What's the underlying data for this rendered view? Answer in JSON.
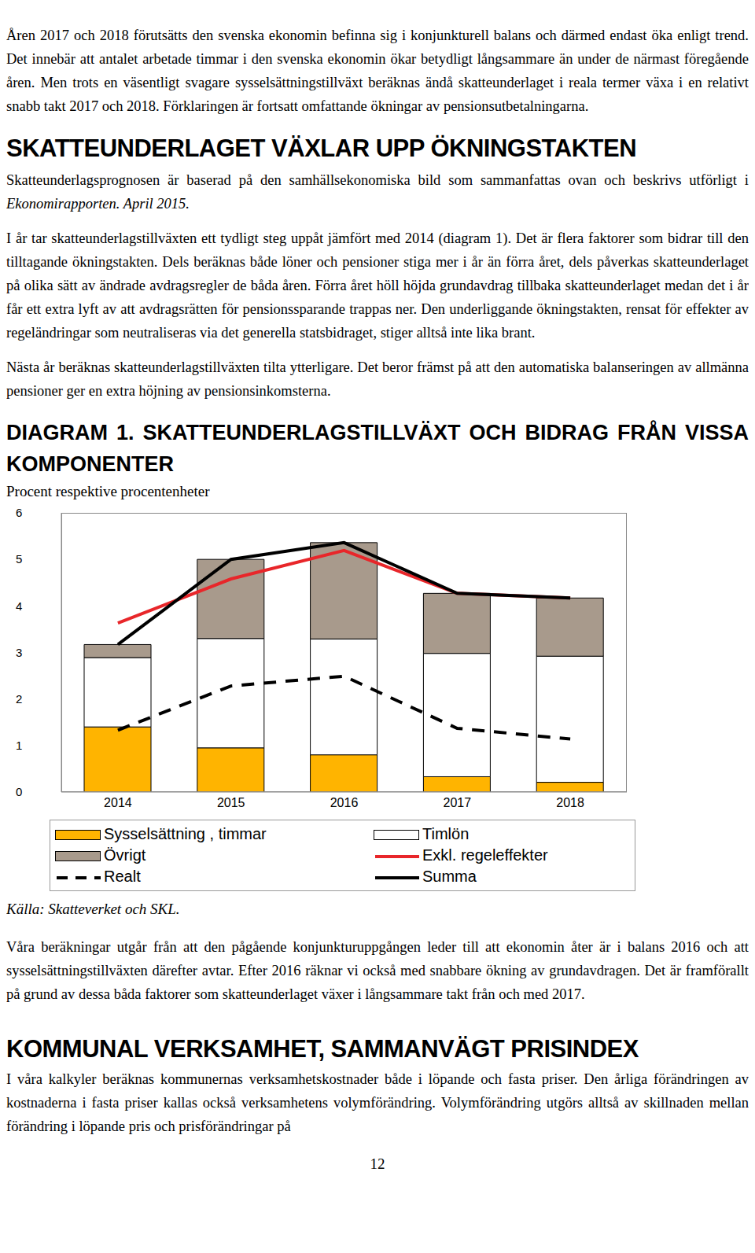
{
  "document": {
    "intro": [
      [
        {
          "text": "Åren 2017 och 2018 förutsätts den svenska ekonomin befinna sig i konjunkturell balans och därmed endast öka enligt trend. Det innebär att antalet arbetade timmar i den svenska ekonomin ökar betydligt långsammare än under de närmast föregående åren. Men trots en väsentligt svagare sysselsättningstillväxt beräknas ändå skatteunderlaget i reala termer växa i en relativt snabb takt 2017 och 2018. Förklaringen är fortsatt omfattande ökningar av pensionsutbetalningarna.",
          "italic": false
        }
      ]
    ],
    "heading_1": "SKATTEUNDERLAGET VÄXLAR UPP ÖKNINGSTAKTEN",
    "section_1": [
      [
        {
          "text": "Skatteunderlagsprognosen är baserad på den samhällsekonomiska bild som sammanfattas ovan och beskrivs utförligt i ",
          "italic": false
        },
        {
          "text": "Ekonomirapporten. April 2015.",
          "italic": true
        }
      ],
      [
        {
          "text": "I år tar skatteunderlagstillväxten ett tydligt steg uppåt jämfört med 2014 (diagram 1). Det är flera faktorer som bidrar till den tilltagande ökningstakten. Dels beräknas både löner och pensioner stiga mer i år än förra året, dels påverkas skatteunderlaget på olika sätt av ändrade avdragsregler de båda åren. Förra året höll höjda grundavdrag tillbaka skatteunderlaget medan det i år får ett extra lyft av att avdragsrätten för pensionssparande trappas ner. Den underliggande ökningstakten, rensat för effekter av regeländringar som neutraliseras via det generella statsbidraget, stiger alltså inte lika brant.",
          "italic": false
        }
      ],
      [
        {
          "text": "Nästa år beräknas skatteunderlagstillväxten tilta ytterligare. Det beror främst på att den automatiska balanseringen av allmänna pensioner ger en extra höjning av pensionsinkomsterna.",
          "italic": false
        }
      ]
    ],
    "source": "Källa: Skatteverket och SKL.",
    "section_2": [
      [
        {
          "text": "Våra beräkningar utgår från att den pågående konjunkturuppgången leder till att ekonomin åter är i balans 2016 och att sysselsättningstillväxten därefter avtar. Efter 2016 räknar vi också med snabbare ökning av grundavdragen. Det är framförallt på grund av dessa båda faktorer som skatteunderlaget växer i långsammare takt från och med 2017.",
          "italic": false
        }
      ]
    ],
    "heading_2": "KOMMUNAL VERKSAMHET, SAMMANVÄGT PRISINDEX",
    "section_3": [
      [
        {
          "text": "I våra kalkyler beräknas kommunernas verksamhetskostnader både i löpande och fasta priser. Den årliga förändringen av kostnaderna i fasta priser kallas också verksamhetens volymförändring. Volymförändring utgörs alltså av skillnaden mellan förändring i löpande pris och prisförändringar på",
          "italic": false
        }
      ]
    ],
    "page_number": "12"
  },
  "chart_data": {
    "type": "bar",
    "title": "DIAGRAM 1. SKATTEUNDERLAGSTILLVÄXT OCH BIDRAG FRÅN VISSA KOMPONENTER",
    "subtitle": "Procent respektive procentenheter",
    "categories": [
      "2014",
      "2015",
      "2016",
      "2017",
      "2018"
    ],
    "stacked": true,
    "ylim": [
      0,
      6
    ],
    "yticks": [
      0,
      1,
      2,
      3,
      4,
      5,
      6
    ],
    "grid": false,
    "series": [
      {
        "name": "Sysselsättning , timmar",
        "type": "bar",
        "color": "#ffb400",
        "values": [
          1.4,
          0.95,
          0.8,
          0.33,
          0.21
        ]
      },
      {
        "name": "Timlön",
        "type": "bar",
        "color": "#ffffff",
        "values": [
          1.49,
          2.35,
          2.49,
          2.65,
          2.71
        ]
      },
      {
        "name": "Övrigt",
        "type": "bar",
        "color": "#a89a8c",
        "values": [
          0.28,
          1.7,
          2.07,
          1.29,
          1.25
        ]
      },
      {
        "name": "Exkl. regeleffekter",
        "type": "line",
        "color": "#e8262a",
        "line_style": "solid",
        "values": [
          3.63,
          4.58,
          5.19,
          4.27,
          4.17
        ]
      },
      {
        "name": "Realt",
        "type": "line",
        "color": "#000000",
        "line_style": "dashed",
        "values": [
          1.33,
          2.28,
          2.49,
          1.37,
          1.14
        ]
      },
      {
        "name": "Summa",
        "type": "line",
        "color": "#000000",
        "line_style": "solid",
        "values": [
          3.17,
          5.0,
          5.36,
          4.27,
          4.17
        ]
      }
    ]
  }
}
